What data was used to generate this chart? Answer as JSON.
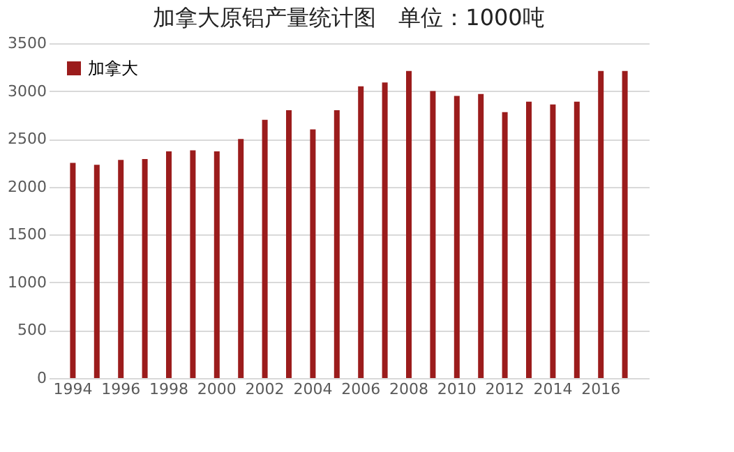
{
  "chart_data": {
    "type": "bar",
    "title": "加拿大原铝产量统计图　单位：1000吨",
    "categories": [
      "1994",
      null,
      "1996",
      null,
      "1998",
      null,
      "2000",
      null,
      "2002",
      null,
      "2004",
      null,
      "2006",
      null,
      "2008",
      null,
      "2010",
      null,
      "2012",
      null,
      "2014",
      null,
      "2016",
      null
    ],
    "series": [
      {
        "name": "加拿大",
        "color": "#9b1c1c",
        "values": [
          2250,
          2230,
          2280,
          2290,
          2370,
          2380,
          2370,
          2500,
          2700,
          2800,
          2600,
          2800,
          3050,
          3090,
          3210,
          3000,
          2950,
          2970,
          2780,
          2890,
          2860,
          2890,
          3210,
          3210
        ]
      }
    ],
    "ylim": [
      0,
      3500
    ],
    "yticks": [
      0,
      500,
      1000,
      1500,
      2000,
      2500,
      3000,
      3500
    ],
    "grid": "y",
    "legend": "top left"
  }
}
